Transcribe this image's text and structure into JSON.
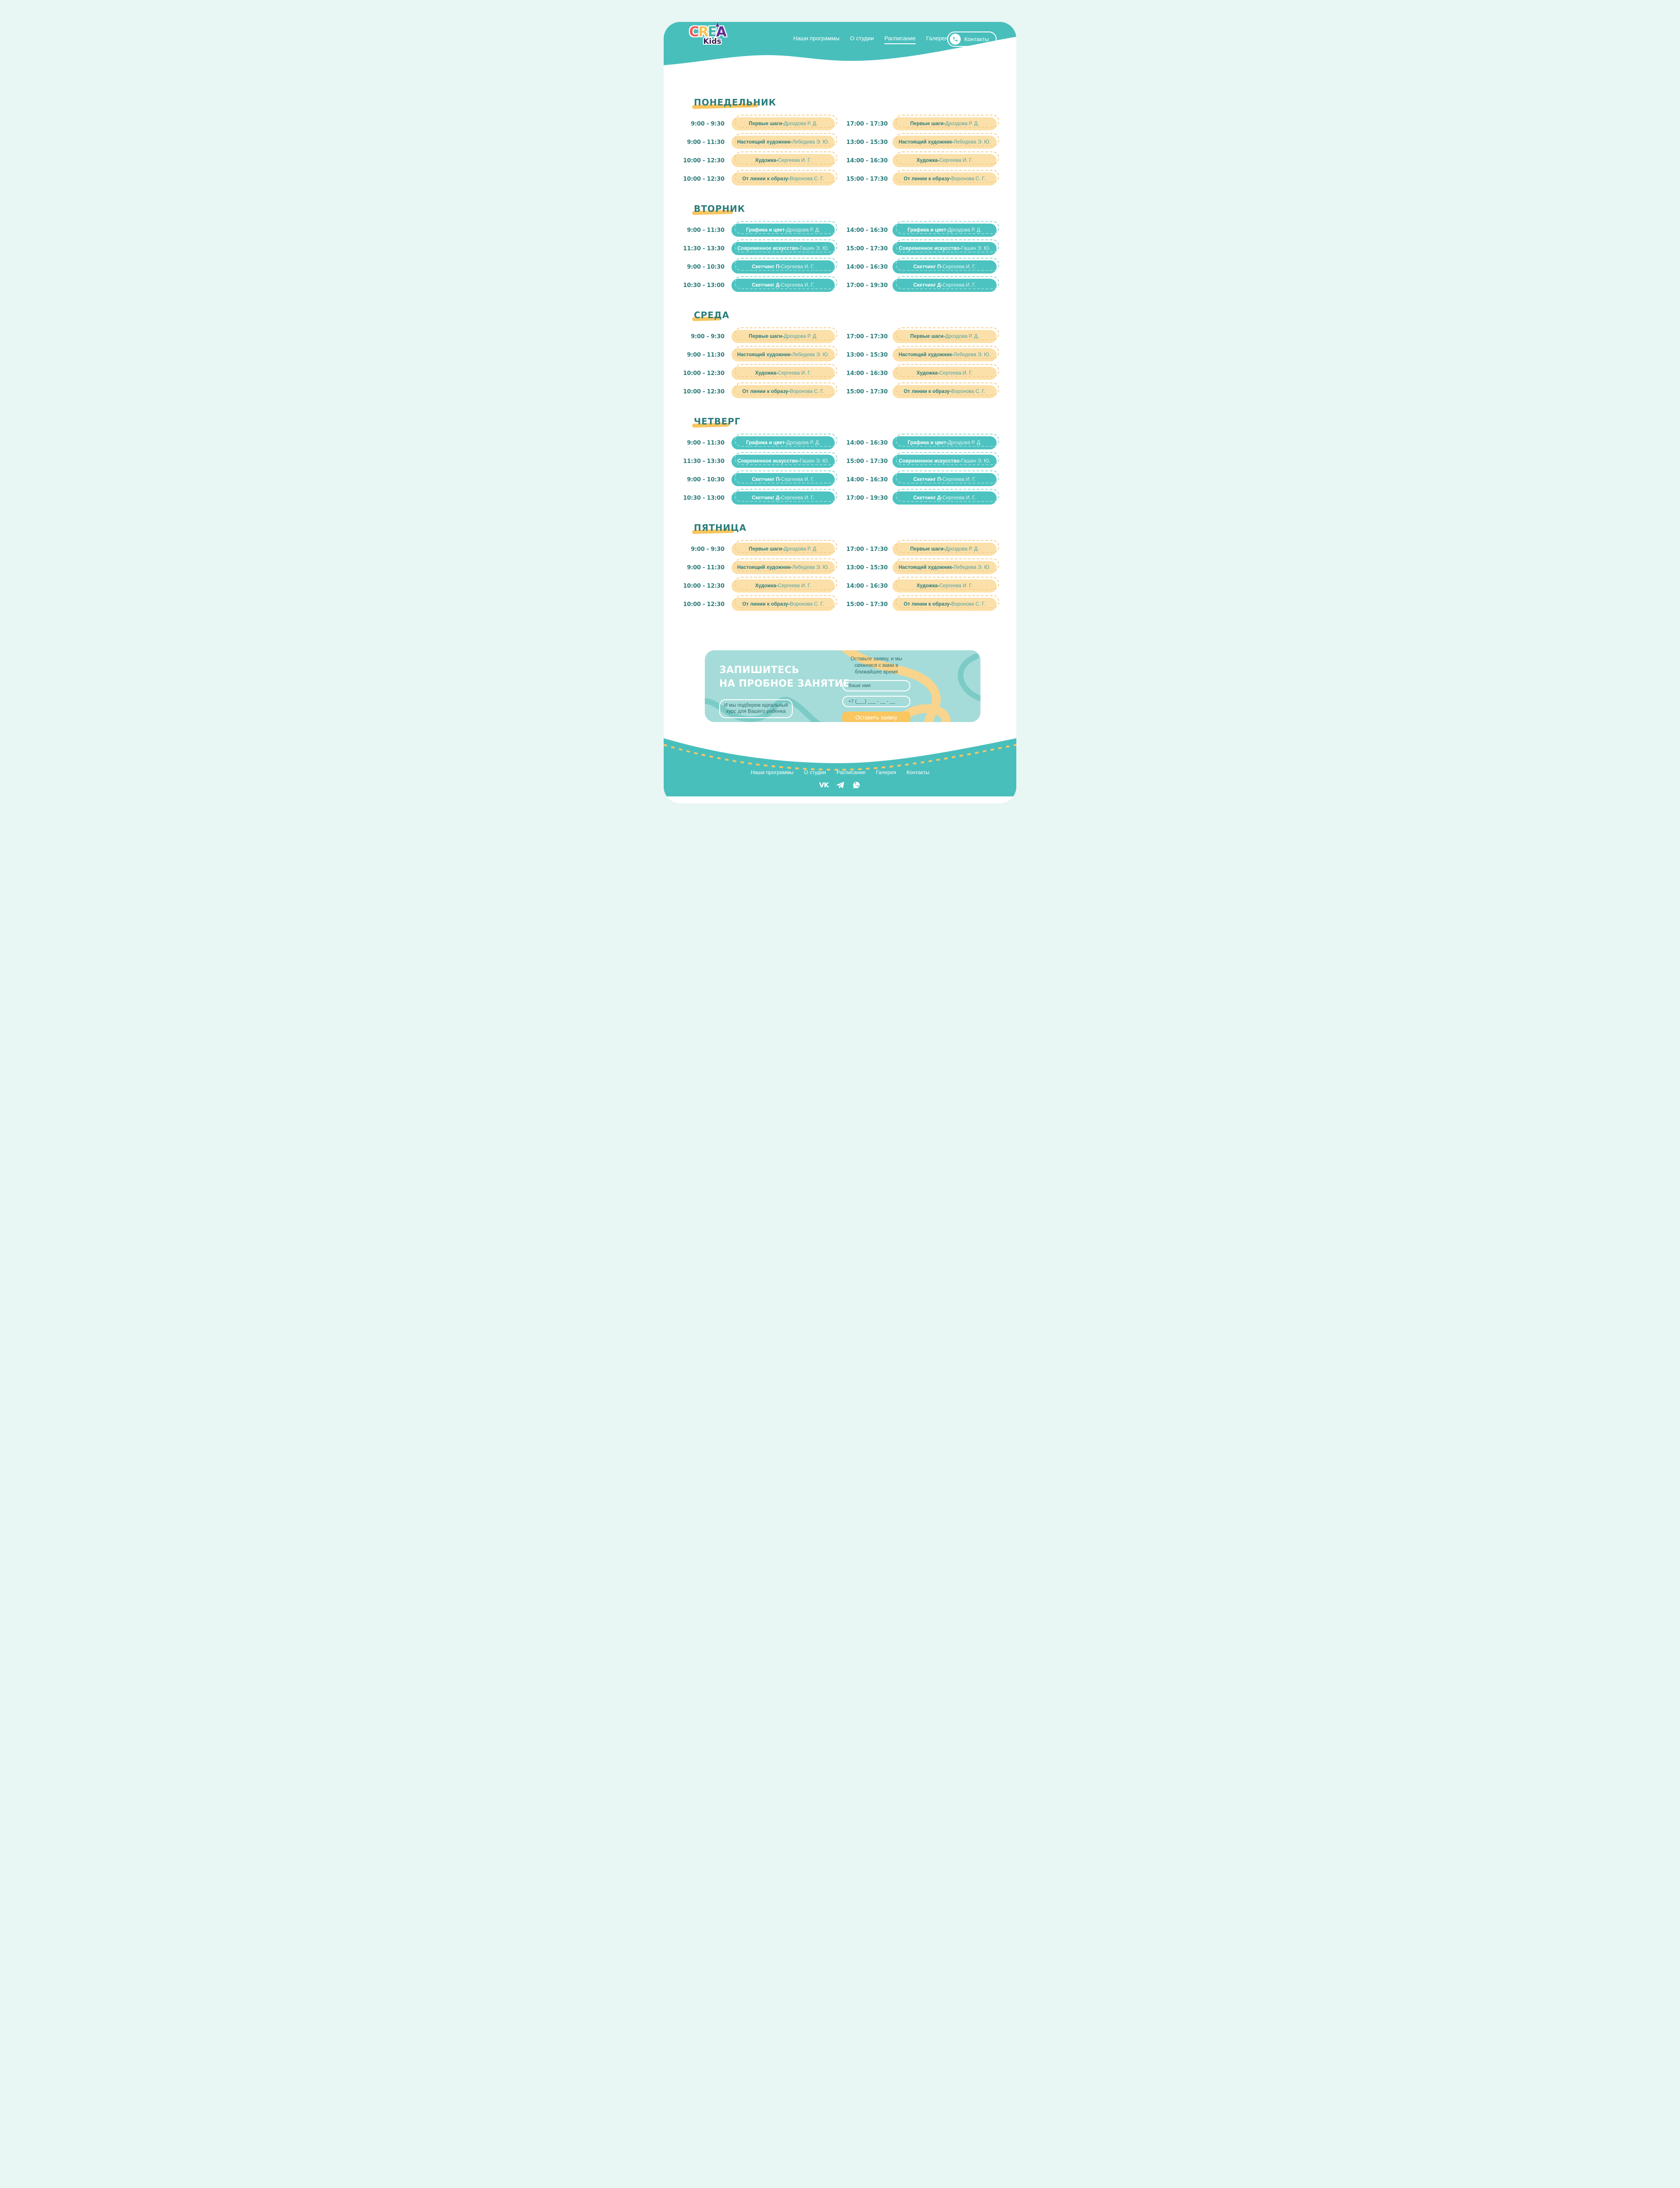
{
  "logo": {
    "crea": "CREA",
    "kids": "Kids"
  },
  "header": {
    "nav": [
      {
        "label": "Наши программы",
        "active": false
      },
      {
        "label": "О студии",
        "active": false
      },
      {
        "label": "Расписание",
        "active": true
      },
      {
        "label": "Галерея",
        "active": false
      }
    ],
    "contacts_label": "Контакты",
    "contacts_icon": "phone-icon"
  },
  "schedule": {
    "separator": "-",
    "days": [
      {
        "name": "ПОНЕДЕЛЬНИК",
        "style": "yellow",
        "rows": [
          {
            "left": {
              "time": "9:00 - 9:30",
              "course": "Первые шаги",
              "teacher": "Дроздова Р. Д."
            },
            "right": {
              "time": "17:00 - 17:30",
              "course": "Первые шаги",
              "teacher": "Дроздова Р. Д."
            }
          },
          {
            "left": {
              "time": "9:00 - 11:30",
              "course": "Настоящий художник",
              "teacher": "Лебедева Э. Ю."
            },
            "right": {
              "time": "13:00 - 15:30",
              "course": "Настоящий художник",
              "teacher": "Лебедева Э. Ю."
            }
          },
          {
            "left": {
              "time": "10:00 - 12:30",
              "course": "Художка",
              "teacher": "Сергеева И. Г."
            },
            "right": {
              "time": "14:00 - 16:30",
              "course": "Художка",
              "teacher": "Сергеева И. Г."
            }
          },
          {
            "left": {
              "time": "10:00 - 12:30",
              "course": "От линии к образу",
              "teacher": "Воронова С. Г."
            },
            "right": {
              "time": "15:00 - 17:30",
              "course": "От линии к образу",
              "teacher": "Воронова С. Г."
            }
          }
        ]
      },
      {
        "name": "ВТОРНИК",
        "style": "teal",
        "rows": [
          {
            "left": {
              "time": "9:00 - 11:30",
              "course": "Графика и цвет",
              "teacher": "Дроздова Р. Д."
            },
            "right": {
              "time": "14:00 - 16:30",
              "course": "Графика и цвет",
              "teacher": "Дроздова Р. Д."
            }
          },
          {
            "left": {
              "time": "11:30 - 13:30",
              "course": "Современное искусство",
              "teacher": "Гашин Э. Ю."
            },
            "right": {
              "time": "15:00 - 17:30",
              "course": "Современное искусство",
              "teacher": "Гашин Э. Ю."
            }
          },
          {
            "left": {
              "time": "9:00 - 10:30",
              "course": "Скетчинг П",
              "teacher": "Сергеева И. Г."
            },
            "right": {
              "time": "14:00 - 16:30",
              "course": "Скетчинг П",
              "teacher": "Сергеева И. Г."
            }
          },
          {
            "left": {
              "time": "10:30 - 13:00",
              "course": "Скетчинг Д",
              "teacher": "Сергеева И. Г."
            },
            "right": {
              "time": "17:00 - 19:30",
              "course": "Скетчинг Д",
              "teacher": "Сергеева И. Г."
            }
          }
        ]
      },
      {
        "name": "СРЕДА",
        "style": "yellow",
        "rows": [
          {
            "left": {
              "time": "9:00 - 9:30",
              "course": "Первые шаги",
              "teacher": "Дроздова Р. Д."
            },
            "right": {
              "time": "17:00 - 17:30",
              "course": "Первые шаги",
              "teacher": "Дроздова Р. Д."
            }
          },
          {
            "left": {
              "time": "9:00 - 11:30",
              "course": "Настоящий художник",
              "teacher": "Лебедева Э. Ю."
            },
            "right": {
              "time": "13:00 - 15:30",
              "course": "Настоящий художник",
              "teacher": "Лебедева Э. Ю."
            }
          },
          {
            "left": {
              "time": "10:00 - 12:30",
              "course": "Художка",
              "teacher": "Сергеева И. Г."
            },
            "right": {
              "time": "14:00 - 16:30",
              "course": "Художка",
              "teacher": "Сергеева И. Г."
            }
          },
          {
            "left": {
              "time": "10:00 - 12:30",
              "course": "От линии к образу",
              "teacher": "Воронова С. Г."
            },
            "right": {
              "time": "15:00 - 17:30",
              "course": "От линии к образу",
              "teacher": "Воронова С. Г."
            }
          }
        ]
      },
      {
        "name": "ЧЕТВЕРГ",
        "style": "teal",
        "rows": [
          {
            "left": {
              "time": "9:00 - 11:30",
              "course": "Графика и цвет",
              "teacher": "Дроздова Р. Д."
            },
            "right": {
              "time": "14:00 - 16:30",
              "course": "Графика и цвет",
              "teacher": "Дроздова Р. Д."
            }
          },
          {
            "left": {
              "time": "11:30 - 13:30",
              "course": "Современное искусство",
              "teacher": "Гашин Э. Ю."
            },
            "right": {
              "time": "15:00 - 17:30",
              "course": "Современное искусство",
              "teacher": "Гашин Э. Ю."
            }
          },
          {
            "left": {
              "time": "9:00 - 10:30",
              "course": "Скетчинг П",
              "teacher": "Сергеева И. Г."
            },
            "right": {
              "time": "14:00 - 16:30",
              "course": "Скетчинг П",
              "teacher": "Сергеева И. Г."
            }
          },
          {
            "left": {
              "time": "10:30 - 13:00",
              "course": "Скетчинг Д",
              "teacher": "Сергеева И. Г."
            },
            "right": {
              "time": "17:00 - 19:30",
              "course": "Скетчинг Д",
              "teacher": "Сергеева И. Г."
            }
          }
        ]
      },
      {
        "name": "ПЯТНИЦА",
        "style": "yellow",
        "rows": [
          {
            "left": {
              "time": "9:00 - 9:30",
              "course": "Первые шаги",
              "teacher": "Дроздова Р. Д."
            },
            "right": {
              "time": "17:00 - 17:30",
              "course": "Первые шаги",
              "teacher": "Дроздова Р. Д."
            }
          },
          {
            "left": {
              "time": "9:00 - 11:30",
              "course": "Настоящий художник",
              "teacher": "Лебедева Э. Ю."
            },
            "right": {
              "time": "13:00 - 15:30",
              "course": "Настоящий художник",
              "teacher": "Лебедева Э. Ю."
            }
          },
          {
            "left": {
              "time": "10:00 - 12:30",
              "course": "Художка",
              "teacher": "Сергеева И. Г."
            },
            "right": {
              "time": "14:00 - 16:30",
              "course": "Художка",
              "teacher": "Сергеева И. Г."
            }
          },
          {
            "left": {
              "time": "10:00 - 12:30",
              "course": "От линии к образу",
              "teacher": "Воронова С. Г."
            },
            "right": {
              "time": "15:00 - 17:30",
              "course": "От линии к образу",
              "teacher": "Воронова С. Г."
            }
          }
        ]
      }
    ]
  },
  "cta": {
    "title_line1": "ЗАПИШИТЕСЬ",
    "title_line2": "НА ПРОБНОЕ ЗАНЯТИЕ",
    "box_text": "И мы подберем идеальный курс для Вашего ребенка",
    "note": "Оставьте заявку, и мы свяжемся с вами в ближайшее время",
    "name_placeholder": "Ваше имя",
    "phone_placeholder": "+7 (___) ___ - __ - __",
    "button_label": "Оставить заявку"
  },
  "footer": {
    "links": [
      "Наши программы",
      "О студии",
      "Расписание",
      "Галерея",
      "Контакты"
    ],
    "socials": [
      "vk-icon",
      "telegram-icon",
      "whatsapp-icon"
    ],
    "vk_label": "VK"
  },
  "colors": {
    "teal": "#49BFBC",
    "teal_dark": "#2B7C7C",
    "cream_pill": "#FBE0A9",
    "yellow_accent": "#F9C55F",
    "cta_background": "#A5DCD9",
    "outer_background": "#E8F6F4"
  }
}
